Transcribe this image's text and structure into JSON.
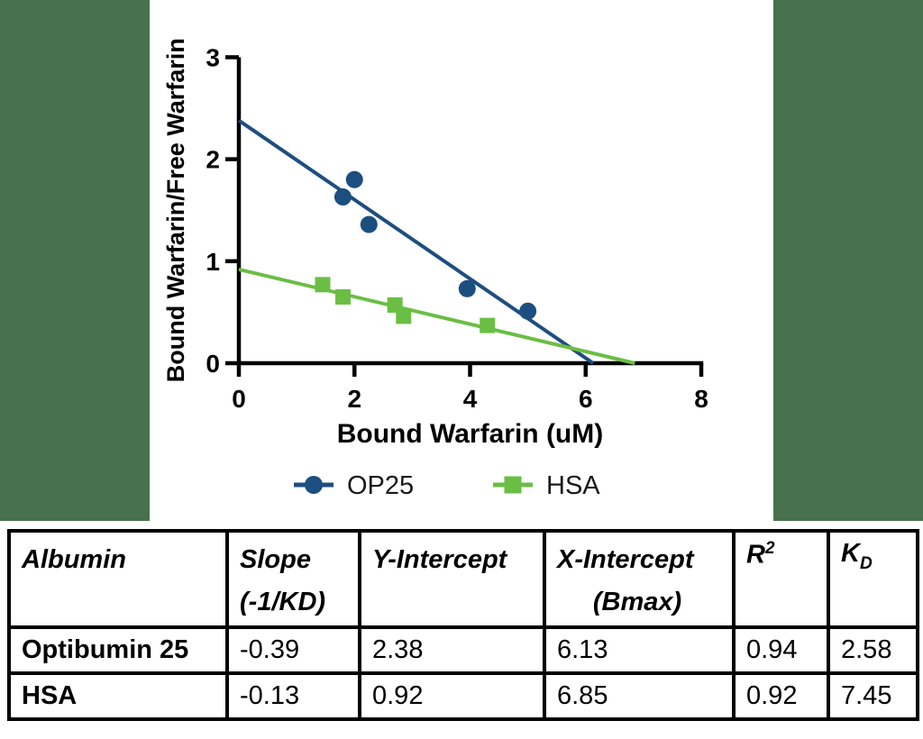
{
  "page": {
    "background_green": "#48714e",
    "panel_white": "#ffffff",
    "axis_color": "#000000"
  },
  "chart_data": {
    "type": "scatter",
    "title": "",
    "xlabel": "Bound Warfarin (uM)",
    "ylabel": "Bound Warfarin/Free Warfarin",
    "xlim": [
      0,
      8
    ],
    "ylim": [
      0,
      3
    ],
    "xticks": [
      0,
      2,
      4,
      6,
      8
    ],
    "yticks": [
      0,
      1,
      2,
      3
    ],
    "grid": false,
    "legend_position": "bottom",
    "series": [
      {
        "name": "OP25",
        "color": "#1d4e80",
        "marker": "circle",
        "points": [
          [
            1.8,
            1.63
          ],
          [
            2.0,
            1.8
          ],
          [
            2.25,
            1.36
          ],
          [
            3.95,
            0.73
          ],
          [
            5.0,
            0.51
          ]
        ],
        "fit_line": {
          "slope": -0.39,
          "y_intercept": 2.38,
          "x_intercept": 6.13
        }
      },
      {
        "name": "HSA",
        "color": "#6abe44",
        "marker": "square",
        "points": [
          [
            1.45,
            0.77
          ],
          [
            1.8,
            0.65
          ],
          [
            2.7,
            0.57
          ],
          [
            2.85,
            0.46
          ],
          [
            4.3,
            0.37
          ]
        ],
        "fit_line": {
          "slope": -0.13,
          "y_intercept": 0.92,
          "x_intercept": 6.85
        }
      }
    ]
  },
  "table": {
    "headers": {
      "albumin": {
        "line1": "Albumin"
      },
      "slope": {
        "line1": "Slope",
        "line2": "(-1/KD)"
      },
      "y_intercept": {
        "line1": "Y-Intercept"
      },
      "x_intercept": {
        "line1": "X-Intercept",
        "line2": "(Bmax)"
      },
      "r_squared": {
        "base": "R",
        "sup": "2"
      },
      "kd": {
        "base": "K",
        "sub": "D"
      }
    },
    "rows": [
      {
        "albumin": "Optibumin 25",
        "slope": "-0.39",
        "y_intercept": "2.38",
        "x_intercept": "6.13",
        "r_squared": "0.94",
        "kd": "2.58"
      },
      {
        "albumin": "HSA",
        "slope": "-0.13",
        "y_intercept": "0.92",
        "x_intercept": "6.85",
        "r_squared": "0.92",
        "kd": "7.45"
      }
    ]
  }
}
